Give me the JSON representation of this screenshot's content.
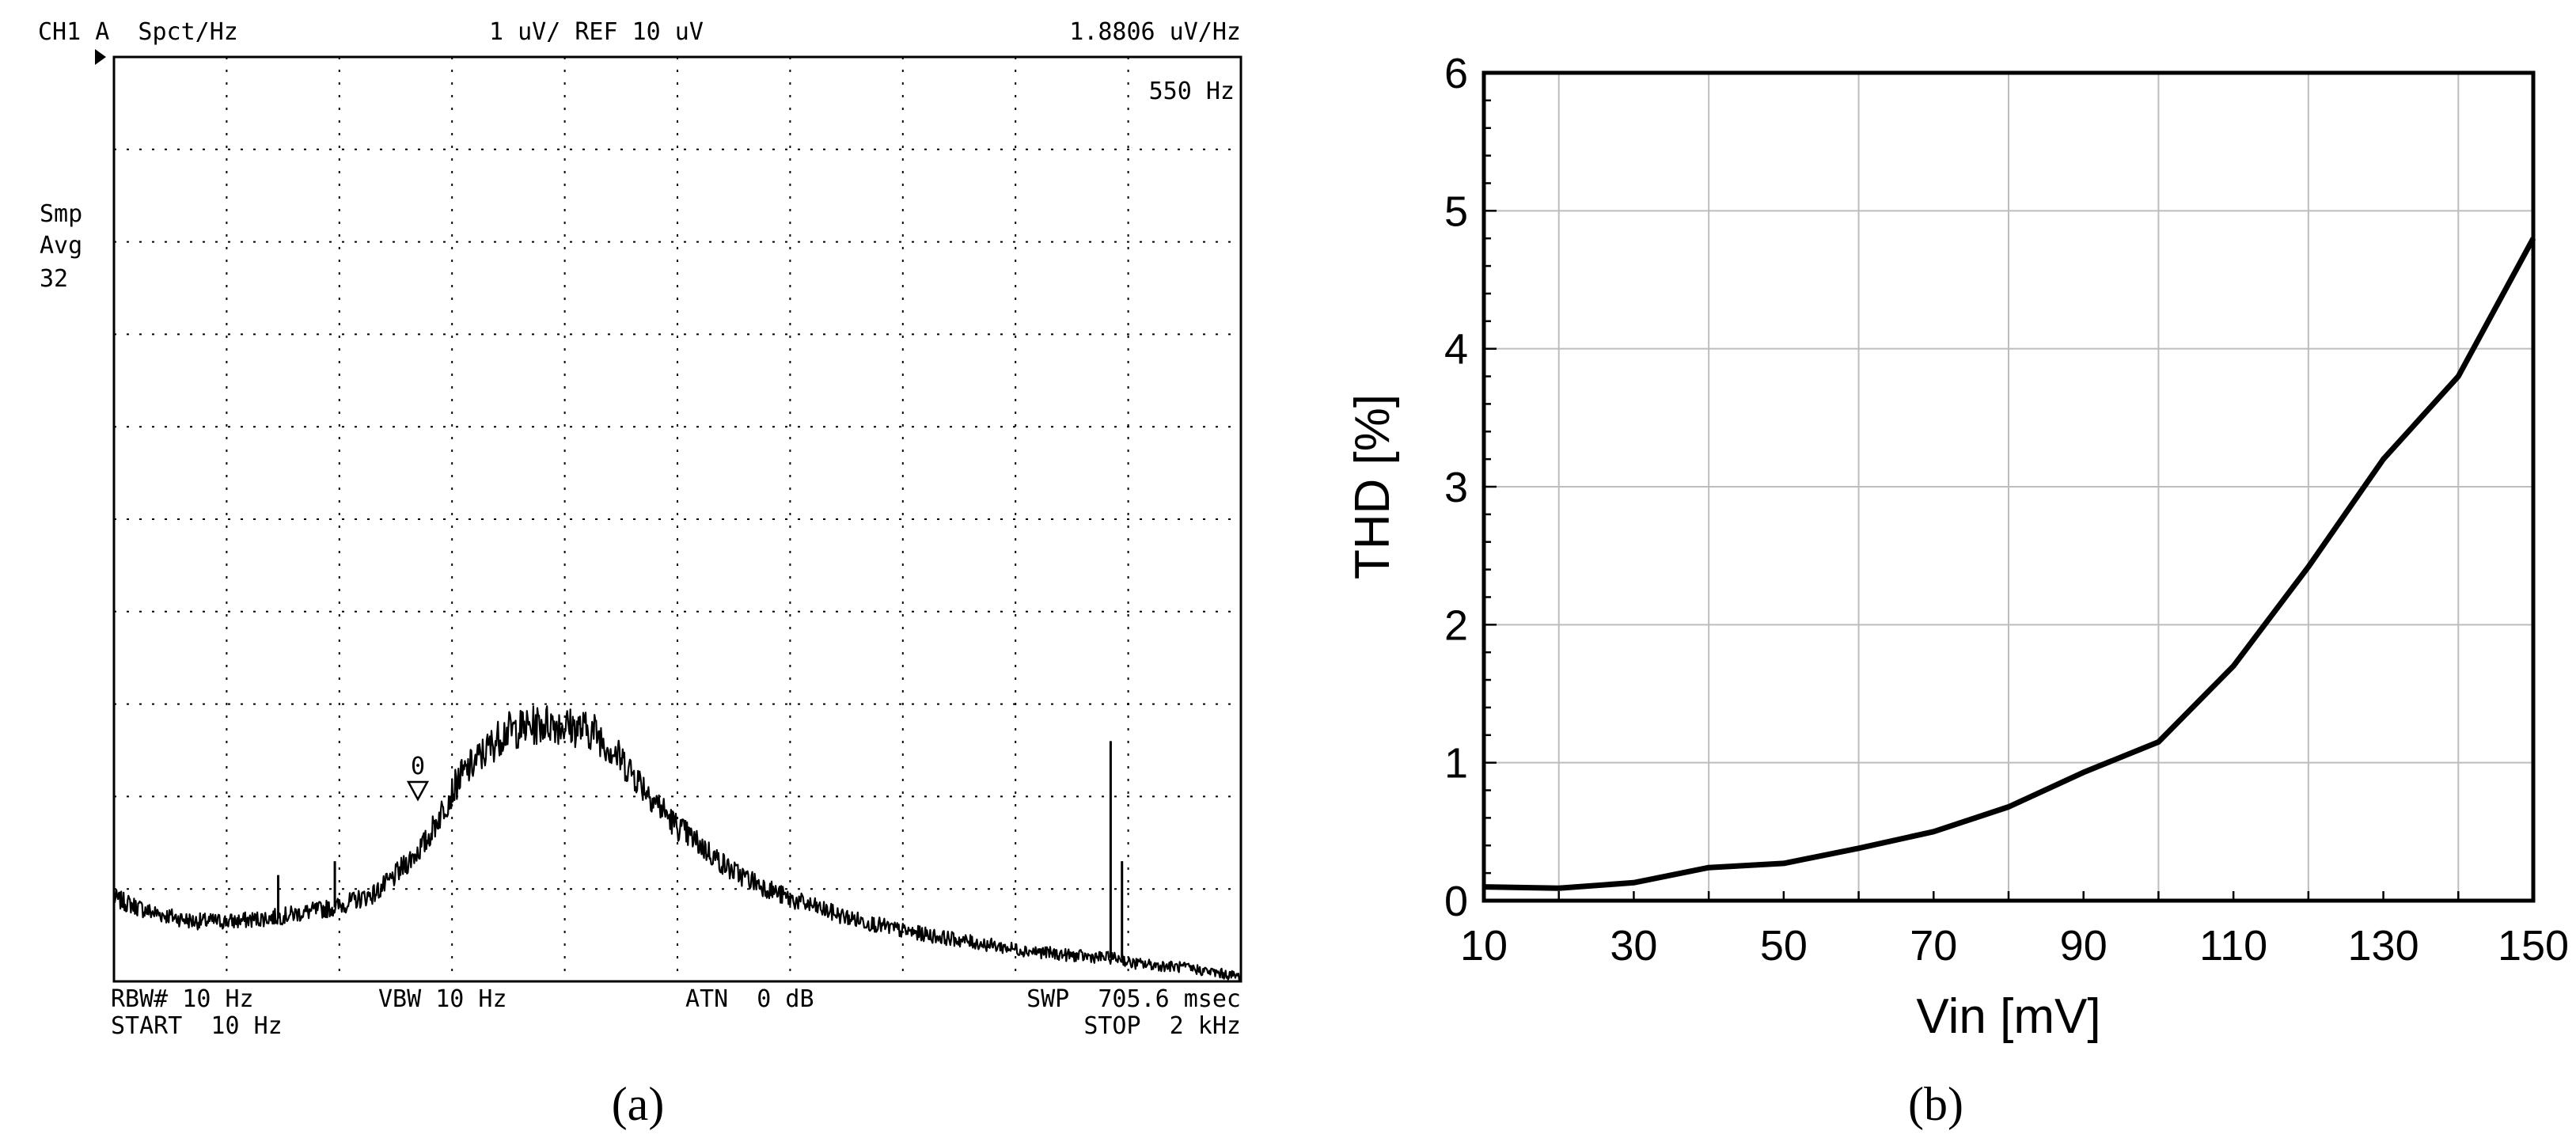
{
  "panel_a": {
    "caption": "(a)",
    "header": {
      "left": "CH1 A  Spct/Hz",
      "center": "1 uV/ REF 10 uV",
      "right": "1.8806 uV/Hz"
    },
    "marker_freq": "550 Hz",
    "side": [
      "Smp",
      "Avg",
      "32"
    ],
    "marker_label": "0",
    "footer": {
      "row1": [
        {
          "key": "rbw",
          "text": "RBW# 10 Hz"
        },
        {
          "key": "vbw",
          "text": "VBW 10 Hz"
        },
        {
          "key": "atn",
          "text": "ATN  0 dB"
        },
        {
          "key": "swp",
          "text": "SWP  705.6 msec"
        }
      ],
      "row2": [
        {
          "key": "start",
          "text": "START  10 Hz"
        },
        {
          "key": "stop",
          "text": "STOP  2 kHz"
        }
      ]
    }
  },
  "panel_b": {
    "caption": "(b)"
  },
  "chart_data": [
    {
      "type": "line",
      "title": "",
      "xlabel": "",
      "ylabel": "",
      "xlim": [
        10,
        2000
      ],
      "ylim": [
        0,
        10
      ],
      "grid": true,
      "series": [
        {
          "x": [
            10,
            75,
            150,
            205,
            225,
            300,
            400,
            470,
            500,
            560,
            620,
            700,
            780,
            860,
            920,
            1000,
            1100,
            1200,
            1300,
            1400,
            1500,
            1600,
            1700,
            1780,
            1790,
            1800,
            1900,
            2000
          ],
          "y": [
            0.9,
            0.75,
            0.65,
            0.65,
            0.65,
            0.7,
            0.8,
            0.95,
            1.1,
            1.5,
            2.2,
            2.7,
            2.8,
            2.7,
            2.3,
            1.7,
            1.2,
            0.9,
            0.7,
            0.55,
            0.45,
            0.35,
            0.28,
            0.25,
            0.25,
            0.2,
            0.15,
            0.05
          ],
          "spikes": [
            {
              "x": 300,
              "y": 1.15
            },
            {
              "x": 400,
              "y": 1.3
            },
            {
              "x": 800,
              "y": 2.8
            },
            {
              "x": 1770,
              "y": 2.6
            },
            {
              "x": 1790,
              "y": 1.3
            }
          ]
        }
      ]
    },
    {
      "type": "line",
      "title": "",
      "xlabel": "Vin [mV]",
      "ylabel": "THD [%]",
      "xlim": [
        10,
        150
      ],
      "ylim": [
        0,
        6
      ],
      "xticks": [
        10,
        30,
        50,
        70,
        90,
        110,
        130,
        150
      ],
      "yticks": [
        0,
        1,
        2,
        3,
        4,
        5,
        6
      ],
      "grid": true,
      "series": [
        {
          "x": [
            10,
            20,
            30,
            40,
            50,
            60,
            70,
            80,
            90,
            100,
            110,
            120,
            130,
            140,
            150
          ],
          "y": [
            0.1,
            0.09,
            0.13,
            0.24,
            0.27,
            0.38,
            0.5,
            0.68,
            0.93,
            1.15,
            1.7,
            2.42,
            3.2,
            3.8,
            4.8
          ]
        }
      ]
    }
  ]
}
